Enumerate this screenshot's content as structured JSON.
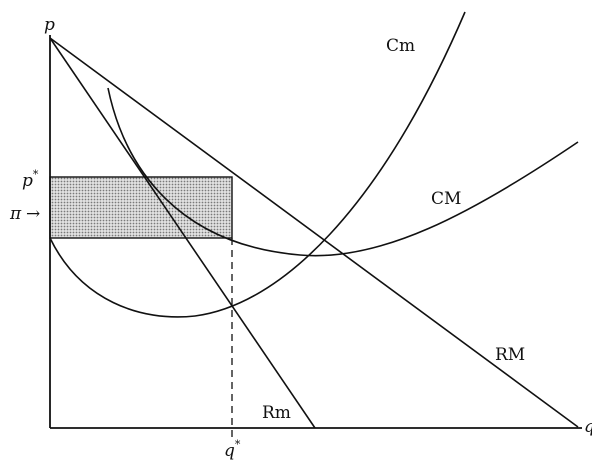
{
  "axes": {
    "y_label": "p",
    "x_label": "q"
  },
  "markers": {
    "p_star": "p",
    "p_star_sup": "*",
    "pi": "π",
    "pi_arrow": "→",
    "q_star": "q",
    "q_star_sup": "*"
  },
  "curves": {
    "marginal_cost": "Cm",
    "average_cost": "CM",
    "average_revenue": "RM",
    "marginal_revenue": "Rm"
  },
  "colors": {
    "ink": "#111111",
    "shade": "#c8c8c8"
  }
}
